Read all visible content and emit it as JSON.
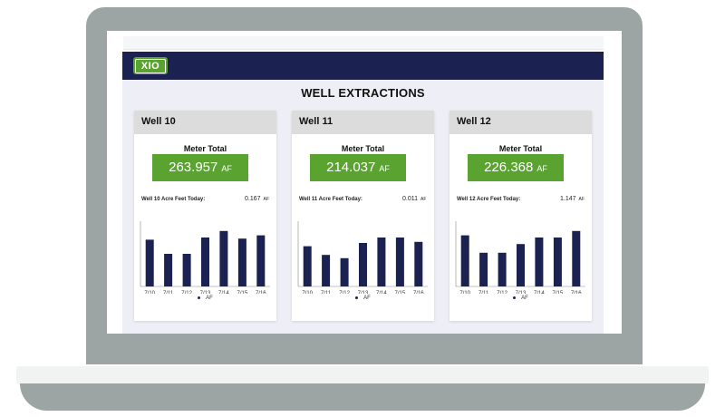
{
  "app": {
    "logo_text": "XIO",
    "page_title": "WELL EXTRACTIONS"
  },
  "colors": {
    "header_bg": "#1b2251",
    "accent_green": "#5aa331",
    "bar_color": "#1b2251",
    "card_header_bg": "#dcdcdc"
  },
  "wells": [
    {
      "title": "Well 10",
      "meter_label": "Meter Total",
      "meter_value": "263.957",
      "meter_unit": "AF",
      "today_label": "Well 10 Acre Feet Today:",
      "today_value": "0.167",
      "today_unit": "AF",
      "chart_data": {
        "type": "bar",
        "categories": [
          "7/10",
          "7/11",
          "7/12",
          "7/13",
          "7/14",
          "7/15",
          "7/16"
        ],
        "series": [
          {
            "name": "AF",
            "values": [
              0.86,
              0.6,
              0.6,
              0.9,
              1.02,
              0.88,
              0.94
            ]
          }
        ],
        "ylim": [
          0,
          1.2
        ],
        "legend": "bottom"
      }
    },
    {
      "title": "Well 11",
      "meter_label": "Meter Total",
      "meter_value": "214.037",
      "meter_unit": "AF",
      "today_label": "Well 11 Acre Feet Today:",
      "today_value": "0.011",
      "today_unit": "AF",
      "chart_data": {
        "type": "bar",
        "categories": [
          "7/10",
          "7/11",
          "7/12",
          "7/13",
          "7/14",
          "7/15",
          "7/16"
        ],
        "series": [
          {
            "name": "AF",
            "values": [
              0.74,
              0.58,
              0.52,
              0.8,
              0.9,
              0.9,
              0.82
            ]
          }
        ],
        "ylim": [
          0,
          1.2
        ],
        "legend": "bottom"
      }
    },
    {
      "title": "Well 12",
      "meter_label": "Meter Total",
      "meter_value": "226.368",
      "meter_unit": "AF",
      "today_label": "Well 12 Acre Feet Today:",
      "today_value": "1.147",
      "today_unit": "AF",
      "chart_data": {
        "type": "bar",
        "categories": [
          "7/10",
          "7/11",
          "7/12",
          "7/13",
          "7/14",
          "7/15",
          "7/16"
        ],
        "series": [
          {
            "name": "AF",
            "values": [
              0.94,
              0.62,
              0.62,
              0.78,
              0.9,
              0.9,
              1.02
            ]
          }
        ],
        "ylim": [
          0,
          1.2
        ],
        "legend": "bottom"
      }
    }
  ]
}
